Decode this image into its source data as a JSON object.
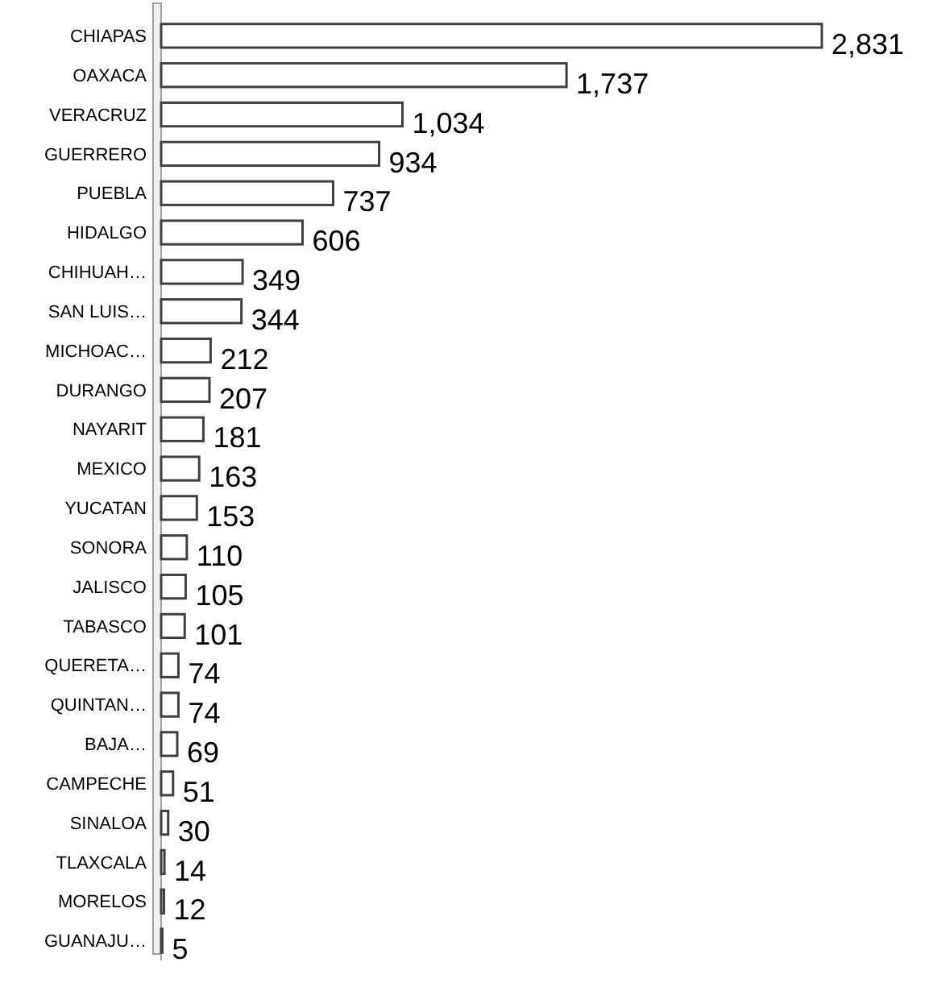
{
  "chart_data": {
    "type": "bar",
    "orientation": "horizontal",
    "relative": false,
    "categories": [
      "CHIAPAS",
      "OAXACA",
      "VERACRUZ",
      "GUERRERO",
      "PUEBLA",
      "HIDALGO",
      "CHIHUAH…",
      "SAN LUIS…",
      "MICHOAC…",
      "DURANGO",
      "NAYARIT",
      "MEXICO",
      "YUCATAN",
      "SONORA",
      "JALISCO",
      "TABASCO",
      "QUERETA…",
      "QUINTAN…",
      "BAJA…",
      "CAMPECHE",
      "SINALOA",
      "TLAXCALA",
      "MORELOS",
      "GUANAJU…"
    ],
    "values": [
      2831,
      1737,
      1034,
      934,
      737,
      606,
      349,
      344,
      212,
      207,
      181,
      163,
      153,
      110,
      105,
      101,
      74,
      74,
      69,
      51,
      30,
      14,
      12,
      5
    ],
    "value_labels": [
      "2,831",
      "1,737",
      "1,034",
      "934",
      "737",
      "606",
      "349",
      "344",
      "212",
      "207",
      "181",
      "163",
      "153",
      "110",
      "105",
      "101",
      "74",
      "74",
      "69",
      "51",
      "30",
      "14",
      "12",
      "5"
    ],
    "color": "#ffffff"
  }
}
